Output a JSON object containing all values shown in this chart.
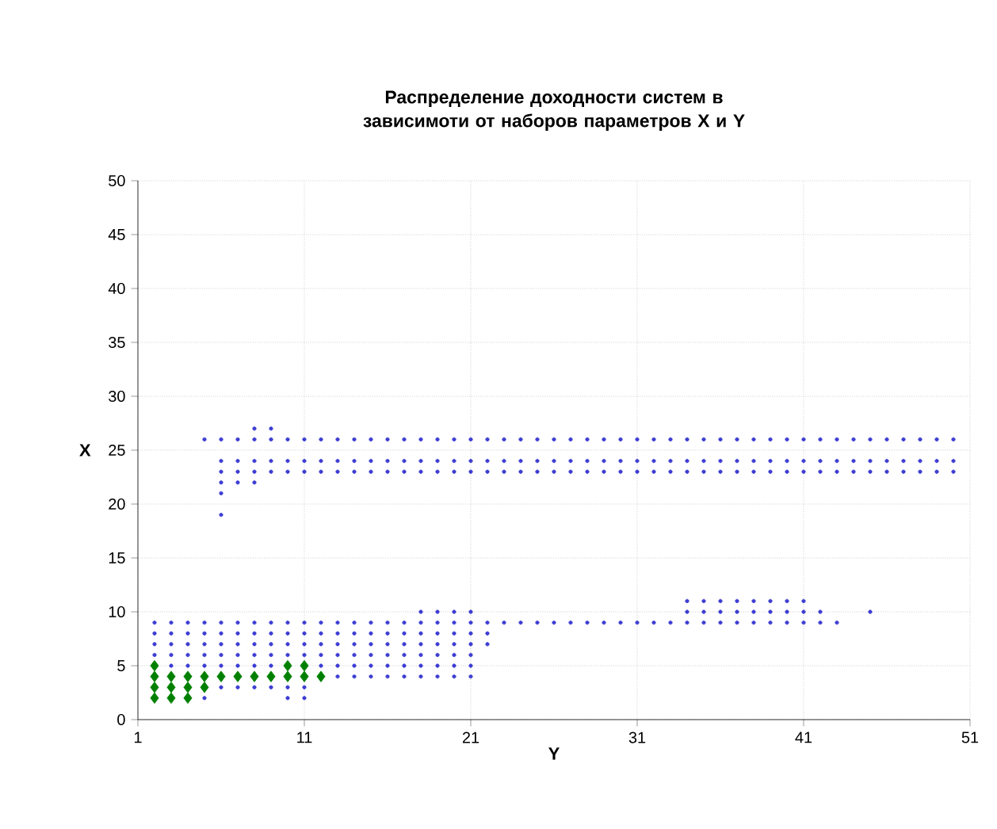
{
  "chart_data": {
    "type": "scatter",
    "title": "Распределение доходности систем в зависимоти от наборов параметров X и Y",
    "xlabel": "Y",
    "ylabel": "X",
    "xlim": [
      1,
      51
    ],
    "xticks": [
      1,
      11,
      21,
      31,
      41,
      51
    ],
    "ylim": [
      0,
      50
    ],
    "yticks": [
      0,
      5,
      10,
      15,
      20,
      25,
      30,
      35,
      40,
      45,
      50
    ],
    "grid": true,
    "series": [
      {
        "color": "#3c3cd2",
        "marker": "circle",
        "x": [
          8,
          9
        ],
        "values": [
          27,
          27
        ]
      },
      {
        "color": "#3c3cd2",
        "marker": "circle",
        "x": [
          5,
          6,
          7,
          8,
          9,
          10,
          11,
          12,
          13,
          14,
          15,
          16,
          17,
          18,
          19,
          20,
          21,
          22,
          23,
          24,
          25,
          26,
          27,
          28,
          29,
          30,
          31,
          32,
          33,
          34,
          35,
          36,
          37,
          38,
          39,
          40,
          41,
          42,
          43,
          44,
          45,
          46,
          47,
          48,
          49,
          50
        ],
        "values": [
          26,
          26,
          26,
          26,
          26,
          26,
          26,
          26,
          26,
          26,
          26,
          26,
          26,
          26,
          26,
          26,
          26,
          26,
          26,
          26,
          26,
          26,
          26,
          26,
          26,
          26,
          26,
          26,
          26,
          26,
          26,
          26,
          26,
          26,
          26,
          26,
          26,
          26,
          26,
          26,
          26,
          26,
          26,
          26,
          26,
          26
        ]
      },
      {
        "color": "#3c3cd2",
        "marker": "circle",
        "x": [
          6,
          7,
          8,
          9,
          10,
          11,
          12,
          13,
          14,
          15,
          16,
          17,
          18,
          19,
          20,
          21,
          22,
          23,
          24,
          25,
          26,
          27,
          28,
          29,
          30,
          31,
          32,
          33,
          34,
          35,
          36,
          37,
          38,
          39,
          40,
          41,
          42,
          43,
          44,
          45,
          46,
          47,
          48,
          49,
          50
        ],
        "values": [
          24,
          24,
          24,
          24,
          24,
          24,
          24,
          24,
          24,
          24,
          24,
          24,
          24,
          24,
          24,
          24,
          24,
          24,
          24,
          24,
          24,
          24,
          24,
          24,
          24,
          24,
          24,
          24,
          24,
          24,
          24,
          24,
          24,
          24,
          24,
          24,
          24,
          24,
          24,
          24,
          24,
          24,
          24,
          24,
          24
        ]
      },
      {
        "color": "#3c3cd2",
        "marker": "circle",
        "x": [
          6,
          7,
          8,
          9,
          10,
          11,
          12,
          13,
          14,
          15,
          16,
          17,
          18,
          19,
          20,
          21,
          22,
          23,
          24,
          25,
          26,
          27,
          28,
          29,
          30,
          31,
          32,
          33,
          34,
          35,
          36,
          37,
          38,
          39,
          40,
          41,
          42,
          43,
          44,
          45,
          46,
          47,
          48,
          49,
          50
        ],
        "values": [
          23,
          23,
          23,
          23,
          23,
          23,
          23,
          23,
          23,
          23,
          23,
          23,
          23,
          23,
          23,
          23,
          23,
          23,
          23,
          23,
          23,
          23,
          23,
          23,
          23,
          23,
          23,
          23,
          23,
          23,
          23,
          23,
          23,
          23,
          23,
          23,
          23,
          23,
          23,
          23,
          23,
          23,
          23,
          23,
          23
        ]
      },
      {
        "color": "#3c3cd2",
        "marker": "circle",
        "x": [
          6,
          7,
          8,
          6,
          6
        ],
        "values": [
          22,
          22,
          22,
          21,
          19
        ]
      },
      {
        "color": "#3c3cd2",
        "marker": "circle",
        "x": [
          34,
          35,
          36,
          37,
          38,
          39,
          40,
          41
        ],
        "values": [
          11,
          11,
          11,
          11,
          11,
          11,
          11,
          11
        ]
      },
      {
        "color": "#3c3cd2",
        "marker": "circle",
        "x": [
          18,
          19,
          20,
          21,
          34,
          35,
          36,
          37,
          38,
          39,
          40,
          41,
          42,
          45
        ],
        "values": [
          10,
          10,
          10,
          10,
          10,
          10,
          10,
          10,
          10,
          10,
          10,
          10,
          10,
          10
        ]
      },
      {
        "color": "#3c3cd2",
        "marker": "circle",
        "x": [
          2,
          3,
          4,
          5,
          6,
          7,
          8,
          9,
          10,
          11,
          12,
          13,
          14,
          15,
          16,
          17,
          18,
          19,
          20,
          21,
          22,
          23,
          24,
          25,
          26,
          27,
          28,
          29,
          30,
          31,
          32,
          33,
          34,
          35,
          36,
          37,
          38,
          39,
          40,
          41,
          42,
          43
        ],
        "values": [
          9,
          9,
          9,
          9,
          9,
          9,
          9,
          9,
          9,
          9,
          9,
          9,
          9,
          9,
          9,
          9,
          9,
          9,
          9,
          9,
          9,
          9,
          9,
          9,
          9,
          9,
          9,
          9,
          9,
          9,
          9,
          9,
          9,
          9,
          9,
          9,
          9,
          9,
          9,
          9,
          9,
          9
        ]
      },
      {
        "color": "#3c3cd2",
        "marker": "circle",
        "x": [
          2,
          3,
          4,
          5,
          6,
          7,
          8,
          9,
          10,
          11,
          12,
          13,
          14,
          15,
          16,
          17,
          18,
          19,
          20,
          21,
          22
        ],
        "values": [
          8,
          8,
          8,
          8,
          8,
          8,
          8,
          8,
          8,
          8,
          8,
          8,
          8,
          8,
          8,
          8,
          8,
          8,
          8,
          8,
          8
        ]
      },
      {
        "color": "#3c3cd2",
        "marker": "circle",
        "x": [
          2,
          3,
          4,
          5,
          6,
          7,
          8,
          9,
          10,
          11,
          12,
          13,
          14,
          15,
          16,
          17,
          18,
          19,
          20,
          21,
          22
        ],
        "values": [
          7,
          7,
          7,
          7,
          7,
          7,
          7,
          7,
          7,
          7,
          7,
          7,
          7,
          7,
          7,
          7,
          7,
          7,
          7,
          7,
          7
        ]
      },
      {
        "color": "#3c3cd2",
        "marker": "circle",
        "x": [
          2,
          3,
          4,
          5,
          6,
          7,
          8,
          9,
          10,
          11,
          12,
          13,
          14,
          15,
          16,
          17,
          18,
          19,
          20,
          21
        ],
        "values": [
          6,
          6,
          6,
          6,
          6,
          6,
          6,
          6,
          6,
          6,
          6,
          6,
          6,
          6,
          6,
          6,
          6,
          6,
          6,
          6
        ]
      },
      {
        "color": "#3c3cd2",
        "marker": "circle",
        "x": [
          3,
          4,
          5,
          6,
          7,
          8,
          9,
          12,
          13,
          14,
          15,
          16,
          17,
          18,
          19,
          20,
          21
        ],
        "values": [
          5,
          5,
          5,
          5,
          5,
          5,
          5,
          5,
          5,
          5,
          5,
          5,
          5,
          5,
          5,
          5,
          5
        ]
      },
      {
        "color": "#3c3cd2",
        "marker": "circle",
        "x": [
          13,
          14,
          15,
          16,
          17,
          18,
          19,
          20,
          21
        ],
        "values": [
          4,
          4,
          4,
          4,
          4,
          4,
          4,
          4,
          4
        ]
      },
      {
        "color": "#3c3cd2",
        "marker": "circle",
        "x": [
          6,
          7,
          8,
          9,
          10,
          11,
          5,
          10,
          11
        ],
        "values": [
          3,
          3,
          3,
          3,
          3,
          3,
          2,
          2,
          2
        ]
      },
      {
        "color": "#008000",
        "marker": "diamond",
        "x": [
          2,
          3,
          4,
          5,
          2,
          3,
          4,
          5,
          6,
          7,
          8,
          9,
          10,
          11,
          12,
          2,
          10,
          11,
          2,
          3,
          4
        ],
        "values": [
          3,
          3,
          3,
          3,
          4,
          4,
          4,
          4,
          4,
          4,
          4,
          4,
          4,
          4,
          4,
          5,
          5,
          5,
          2,
          2,
          2
        ]
      }
    ]
  }
}
